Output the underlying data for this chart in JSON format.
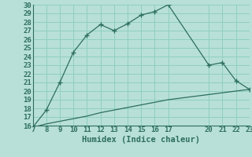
{
  "title": "",
  "xlabel": "Humidex (Indice chaleur)",
  "ylabel": "",
  "bg_color": "#b8e0d8",
  "line_color": "#2d6e5e",
  "grid_color": "#8ecfbf",
  "x_upper_line": [
    7,
    8,
    9,
    10,
    11,
    12,
    13,
    14,
    15,
    16,
    17,
    20,
    21,
    22,
    23
  ],
  "y_upper_line": [
    15.8,
    17.8,
    21.0,
    24.5,
    26.5,
    27.7,
    27.0,
    27.8,
    28.8,
    29.2,
    30.0,
    23.0,
    23.3,
    21.2,
    20.2
  ],
  "x_lower_line": [
    7,
    8,
    9,
    10,
    11,
    12,
    13,
    14,
    15,
    16,
    17,
    20,
    21,
    22,
    23
  ],
  "y_lower_line": [
    15.8,
    16.2,
    16.5,
    16.8,
    17.1,
    17.5,
    17.8,
    18.1,
    18.4,
    18.7,
    19.0,
    19.6,
    19.8,
    20.0,
    20.2
  ],
  "xlim": [
    7,
    23
  ],
  "ylim": [
    16,
    30
  ],
  "yticks": [
    16,
    17,
    18,
    19,
    20,
    21,
    22,
    23,
    24,
    25,
    26,
    27,
    28,
    29,
    30
  ],
  "xticks": [
    7,
    8,
    9,
    10,
    11,
    12,
    13,
    14,
    15,
    16,
    17,
    20,
    21,
    22,
    23
  ],
  "font_color": "#2d6e5e",
  "xlabel_fontsize": 7.5,
  "tick_fontsize": 6.5
}
